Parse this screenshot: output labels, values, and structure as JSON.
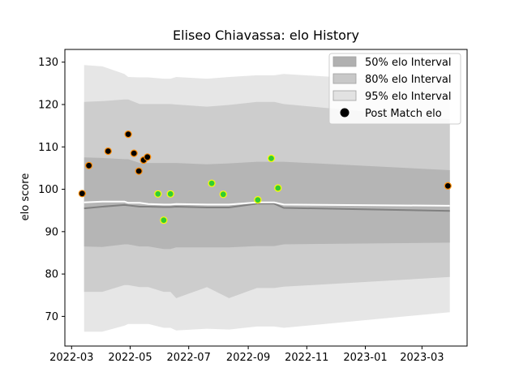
{
  "chart_data": {
    "type": "scatter",
    "title": "Eliseo Chiavassa: elo History",
    "xlabel": "",
    "ylabel": "elo score",
    "xlim": [
      "2022-02-22",
      "2023-04-17"
    ],
    "ylim": [
      63,
      133
    ],
    "x_ticks": [
      "2022-03",
      "2022-05",
      "2022-07",
      "2022-09",
      "2022-11",
      "2023-01",
      "2023-03"
    ],
    "y_ticks": [
      70,
      80,
      90,
      100,
      110,
      120,
      130
    ],
    "grid": false,
    "legend_position": "upper right",
    "legend": [
      {
        "label": "50% elo Interval",
        "kind": "patch",
        "color": "#b0b0b0"
      },
      {
        "label": "80% elo Interval",
        "kind": "patch",
        "color": "#c8c8c8"
      },
      {
        "label": "95% elo Interval",
        "kind": "patch",
        "color": "#e2e2e2"
      },
      {
        "label": "Post Match elo",
        "kind": "marker",
        "color": "#000000"
      }
    ],
    "band_dates": [
      "2022-03-14",
      "2022-04-02",
      "2022-04-25",
      "2022-04-29",
      "2022-05-11",
      "2022-05-20",
      "2022-06-05",
      "2022-06-12",
      "2022-06-18",
      "2022-07-20",
      "2022-08-12",
      "2022-09-10",
      "2022-09-28",
      "2022-10-08",
      "2023-03-30"
    ],
    "bands": {
      "p95": {
        "upper": [
          129.3,
          129.0,
          127.2,
          126.5,
          126.4,
          126.4,
          126.1,
          126.1,
          126.5,
          126.1,
          126.5,
          126.9,
          126.9,
          127.2,
          124.9
        ],
        "lower": [
          66.4,
          66.4,
          67.8,
          68.2,
          68.2,
          68.2,
          67.3,
          67.3,
          66.7,
          67.1,
          66.9,
          67.6,
          67.6,
          67.3,
          71.0
        ]
      },
      "p80": {
        "upper": [
          120.6,
          120.8,
          121.2,
          121.2,
          120.1,
          120.1,
          120.1,
          120.1,
          120.0,
          119.5,
          119.9,
          120.6,
          120.6,
          120.1,
          116.5
        ],
        "lower": [
          75.8,
          75.8,
          77.4,
          77.4,
          76.9,
          76.9,
          75.8,
          75.8,
          74.3,
          76.9,
          74.3,
          76.7,
          76.7,
          77.0,
          79.3
        ]
      },
      "p50": {
        "upper": [
          107.5,
          107.4,
          107.1,
          107.1,
          106.2,
          106.2,
          106.2,
          106.2,
          106.2,
          105.9,
          106.1,
          106.5,
          106.5,
          106.5,
          104.5
        ],
        "lower": [
          86.5,
          86.4,
          87.0,
          87.0,
          86.5,
          86.5,
          85.9,
          85.9,
          86.3,
          86.3,
          86.3,
          86.6,
          86.6,
          87.0,
          87.4
        ]
      }
    },
    "mean_line": {
      "x": [
        "2022-03-14",
        "2022-04-02",
        "2022-04-25",
        "2022-04-29",
        "2022-05-11",
        "2022-05-20",
        "2022-06-05",
        "2022-06-12",
        "2022-06-18",
        "2022-07-20",
        "2022-08-12",
        "2022-09-10",
        "2022-09-28",
        "2022-10-08",
        "2023-03-30"
      ],
      "y": [
        95.5,
        95.9,
        96.3,
        96.2,
        95.9,
        95.9,
        95.8,
        95.8,
        95.9,
        95.7,
        95.7,
        96.6,
        96.6,
        95.6,
        94.9
      ],
      "color": "#808080"
    },
    "upper_line": {
      "x": [
        "2022-03-14",
        "2022-04-02",
        "2022-04-25",
        "2022-04-29",
        "2022-05-11",
        "2022-05-20",
        "2022-06-05",
        "2022-06-12",
        "2022-06-18",
        "2022-07-20",
        "2022-08-12",
        "2022-09-10",
        "2022-09-28",
        "2022-10-08",
        "2023-03-30"
      ],
      "y": [
        96.9,
        97.1,
        97.1,
        96.8,
        96.8,
        96.5,
        96.4,
        96.4,
        96.5,
        96.4,
        96.4,
        96.9,
        96.9,
        96.4,
        96.1
      ],
      "color": "#ffffff"
    },
    "series": [
      {
        "name": "Post Match elo",
        "points": [
          {
            "x": "2022-03-12",
            "y": 99.0,
            "fill": "#000000",
            "edge": "#ff8c00"
          },
          {
            "x": "2022-03-19",
            "y": 105.6,
            "fill": "#000000",
            "edge": "#ff8c00"
          },
          {
            "x": "2022-04-08",
            "y": 109.0,
            "fill": "#000000",
            "edge": "#ff8c00"
          },
          {
            "x": "2022-04-29",
            "y": 113.0,
            "fill": "#000000",
            "edge": "#ff8c00"
          },
          {
            "x": "2022-05-05",
            "y": 108.5,
            "fill": "#000000",
            "edge": "#ff8c00"
          },
          {
            "x": "2022-05-10",
            "y": 104.3,
            "fill": "#000000",
            "edge": "#ff8c00"
          },
          {
            "x": "2022-05-15",
            "y": 106.9,
            "fill": "#000000",
            "edge": "#ff8c00"
          },
          {
            "x": "2022-05-19",
            "y": 107.6,
            "fill": "#000000",
            "edge": "#ff8c00"
          },
          {
            "x": "2022-05-30",
            "y": 98.9,
            "fill": "#32cd32",
            "edge": "#ffff00"
          },
          {
            "x": "2022-06-05",
            "y": 92.7,
            "fill": "#32cd32",
            "edge": "#ffff00"
          },
          {
            "x": "2022-06-12",
            "y": 98.9,
            "fill": "#32cd32",
            "edge": "#ffff00"
          },
          {
            "x": "2022-07-25",
            "y": 101.4,
            "fill": "#32cd32",
            "edge": "#ffff00"
          },
          {
            "x": "2022-08-06",
            "y": 98.8,
            "fill": "#32cd32",
            "edge": "#ffff00"
          },
          {
            "x": "2022-09-11",
            "y": 97.5,
            "fill": "#32cd32",
            "edge": "#ffff00"
          },
          {
            "x": "2022-09-25",
            "y": 107.3,
            "fill": "#32cd32",
            "edge": "#ffff00"
          },
          {
            "x": "2022-10-02",
            "y": 100.3,
            "fill": "#32cd32",
            "edge": "#ffff00"
          },
          {
            "x": "2023-03-28",
            "y": 100.8,
            "fill": "#000000",
            "edge": "#ff8c00"
          }
        ]
      }
    ]
  }
}
